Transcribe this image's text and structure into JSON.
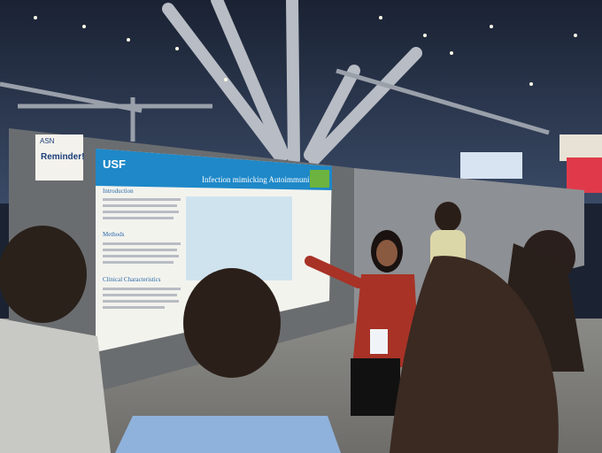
{
  "signs": {
    "org": "ASN",
    "reminder": "Reminder!"
  },
  "poster": {
    "logo": "USF",
    "title": "Infection mimicking Autoimmunity",
    "sections": [
      "Introduction",
      "Methods",
      "Clinical Characteristics"
    ]
  }
}
